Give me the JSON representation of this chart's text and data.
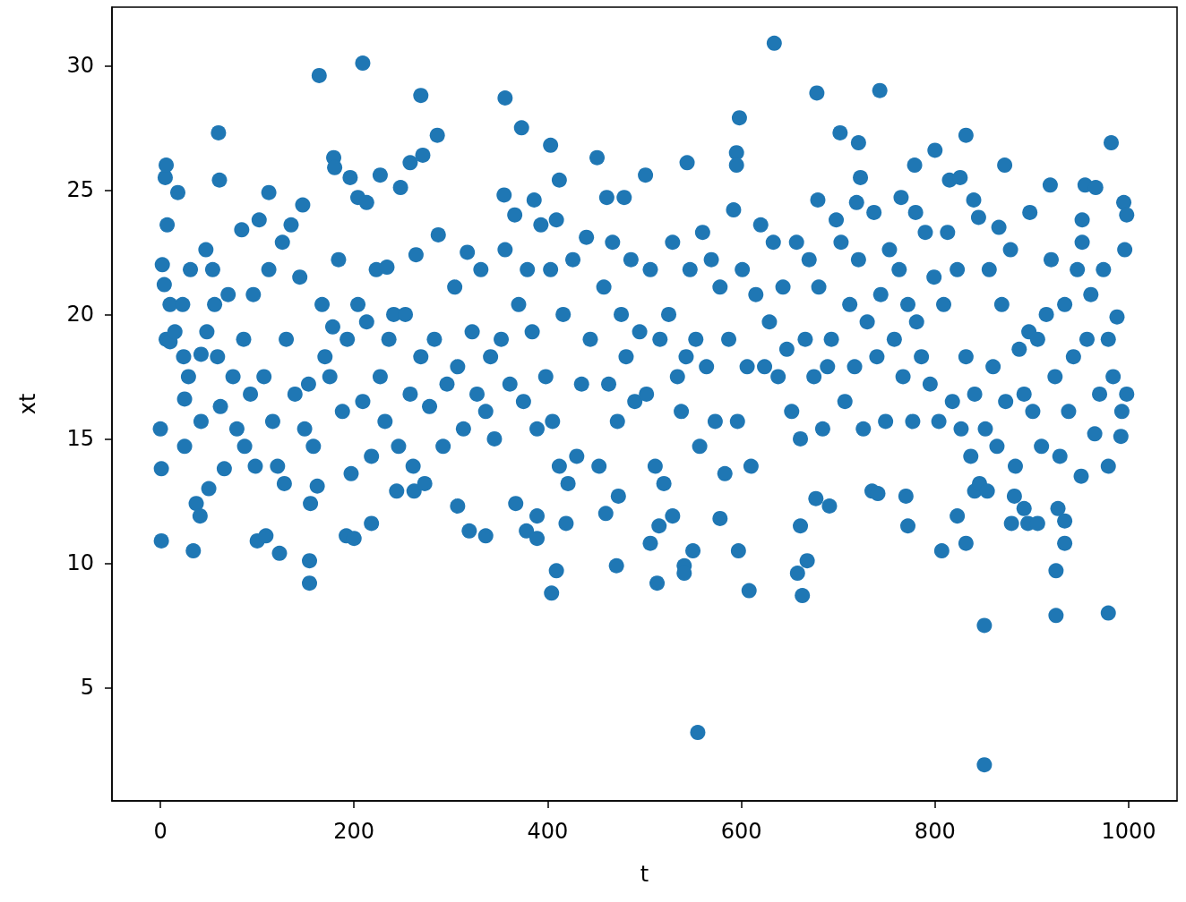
{
  "chart_data": {
    "type": "scatter",
    "xlabel": "t",
    "ylabel": "xt",
    "color": "#1f77b4",
    "marker": "circle",
    "xlim": [
      -50,
      1050
    ],
    "ylim": [
      0.45,
      32.35
    ],
    "xticks": [
      0,
      200,
      400,
      600,
      800,
      1000
    ],
    "yticks": [
      5,
      10,
      15,
      20,
      25,
      30
    ],
    "x": [
      0,
      1,
      1,
      2,
      4,
      5,
      6,
      6,
      7,
      10,
      10,
      15,
      18,
      23,
      24,
      25,
      25,
      29,
      31,
      34,
      37,
      41,
      42,
      42,
      47,
      48,
      50,
      54,
      56,
      59,
      60,
      61,
      62,
      66,
      70,
      75,
      79,
      84,
      86,
      87,
      93,
      96,
      98,
      100,
      102,
      107,
      109,
      112,
      112,
      116,
      121,
      123,
      126,
      128,
      130,
      135,
      139,
      144,
      147,
      149,
      153,
      154,
      154,
      155,
      158,
      162,
      164,
      167,
      170,
      175,
      178,
      179,
      180,
      184,
      188,
      192,
      193,
      196,
      197,
      200,
      204,
      204,
      209,
      209,
      213,
      213,
      218,
      218,
      223,
      227,
      227,
      232,
      234,
      236,
      241,
      244,
      246,
      248,
      253,
      258,
      258,
      261,
      262,
      264,
      269,
      269,
      271,
      273,
      278,
      283,
      286,
      287,
      292,
      296,
      304,
      307,
      307,
      313,
      317,
      319,
      322,
      327,
      331,
      336,
      336,
      341,
      345,
      352,
      355,
      356,
      356,
      361,
      366,
      367,
      370,
      373,
      375,
      378,
      379,
      384,
      386,
      389,
      389,
      389,
      393,
      398,
      403,
      403,
      404,
      405,
      409,
      409,
      412,
      412,
      416,
      419,
      421,
      426,
      430,
      435,
      440,
      444,
      451,
      453,
      458,
      460,
      461,
      463,
      467,
      471,
      472,
      473,
      476,
      479,
      481,
      486,
      490,
      495,
      501,
      502,
      506,
      506,
      511,
      513,
      515,
      516,
      520,
      525,
      529,
      529,
      534,
      538,
      541,
      541,
      543,
      544,
      547,
      550,
      553,
      555,
      557,
      560,
      564,
      569,
      573,
      578,
      578,
      583,
      587,
      592,
      595,
      595,
      596,
      597,
      598,
      601,
      606,
      608,
      610,
      615,
      620,
      624,
      629,
      633,
      634,
      638,
      643,
      647,
      652,
      657,
      658,
      661,
      661,
      663,
      666,
      668,
      670,
      675,
      677,
      678,
      679,
      680,
      684,
      689,
      691,
      693,
      698,
      702,
      703,
      707,
      712,
      717,
      719,
      721,
      721,
      723,
      726,
      730,
      735,
      737,
      740,
      741,
      743,
      744,
      749,
      753,
      758,
      763,
      765,
      767,
      770,
      772,
      772,
      777,
      779,
      780,
      781,
      786,
      790,
      795,
      799,
      800,
      804,
      807,
      809,
      813,
      815,
      818,
      823,
      823,
      826,
      827,
      832,
      832,
      832,
      837,
      840,
      841,
      841,
      845,
      846,
      851,
      851,
      852,
      854,
      856,
      860,
      864,
      866,
      869,
      872,
      873,
      878,
      879,
      882,
      883,
      887,
      892,
      892,
      896,
      897,
      898,
      901,
      906,
      906,
      910,
      915,
      919,
      920,
      924,
      925,
      925,
      927,
      929,
      934,
      934,
      934,
      938,
      943,
      947,
      951,
      952,
      952,
      955,
      957,
      961,
      965,
      966,
      970,
      974,
      979,
      979,
      979,
      982,
      984,
      988,
      992,
      993,
      995,
      996,
      998,
      998
    ],
    "values": [
      15.4,
      13.8,
      10.9,
      22.0,
      21.2,
      25.5,
      26.0,
      19.0,
      23.6,
      20.4,
      18.9,
      19.3,
      24.9,
      20.4,
      18.3,
      16.6,
      14.7,
      17.5,
      21.8,
      10.5,
      12.4,
      11.9,
      15.7,
      18.4,
      22.6,
      19.3,
      13.0,
      21.8,
      20.4,
      18.3,
      27.3,
      25.4,
      16.3,
      13.8,
      20.8,
      17.5,
      15.4,
      23.4,
      19.0,
      14.7,
      16.8,
      20.8,
      13.9,
      10.9,
      23.8,
      17.5,
      11.1,
      24.9,
      21.8,
      15.7,
      13.9,
      10.4,
      22.9,
      13.2,
      19.0,
      23.6,
      16.8,
      21.5,
      24.4,
      15.4,
      17.2,
      10.1,
      9.2,
      12.4,
      14.7,
      13.1,
      29.6,
      20.4,
      18.3,
      17.5,
      19.5,
      26.3,
      25.9,
      22.2,
      16.1,
      11.1,
      19.0,
      25.5,
      13.6,
      11.0,
      24.7,
      20.4,
      30.1,
      16.5,
      24.5,
      19.7,
      11.6,
      14.3,
      21.8,
      25.6,
      17.5,
      15.7,
      21.9,
      19.0,
      20.0,
      12.9,
      14.7,
      25.1,
      20.0,
      26.1,
      16.8,
      13.9,
      12.9,
      22.4,
      28.8,
      18.3,
      26.4,
      13.2,
      16.3,
      19.0,
      27.2,
      23.2,
      14.7,
      17.2,
      21.1,
      12.3,
      17.9,
      15.4,
      22.5,
      11.3,
      19.3,
      16.8,
      21.8,
      11.1,
      16.1,
      18.3,
      15.0,
      19.0,
      24.8,
      28.7,
      22.6,
      17.2,
      24.0,
      12.4,
      20.4,
      27.5,
      16.5,
      11.3,
      21.8,
      19.3,
      24.6,
      11.0,
      11.9,
      15.4,
      23.6,
      17.5,
      26.8,
      21.8,
      8.8,
      15.7,
      9.7,
      23.8,
      25.4,
      13.9,
      20.0,
      11.6,
      13.2,
      22.2,
      14.3,
      17.2,
      23.1,
      19.0,
      26.3,
      13.9,
      21.1,
      12.0,
      24.7,
      17.2,
      22.9,
      9.9,
      15.7,
      12.7,
      20.0,
      24.7,
      18.3,
      22.2,
      16.5,
      19.3,
      25.6,
      16.8,
      10.8,
      21.8,
      13.9,
      9.2,
      11.5,
      19.0,
      13.2,
      20.0,
      11.9,
      22.9,
      17.5,
      16.1,
      9.9,
      9.6,
      18.3,
      26.1,
      21.8,
      10.5,
      19.0,
      3.2,
      14.7,
      23.3,
      17.9,
      22.2,
      15.7,
      11.8,
      21.1,
      13.6,
      19.0,
      24.2,
      26.5,
      26.0,
      15.7,
      10.5,
      27.9,
      21.8,
      17.9,
      8.9,
      13.9,
      20.8,
      23.6,
      17.9,
      19.7,
      22.9,
      30.9,
      17.5,
      21.1,
      18.6,
      16.1,
      22.9,
      9.6,
      15.0,
      11.5,
      8.7,
      19.0,
      10.1,
      22.2,
      17.5,
      12.6,
      28.9,
      24.6,
      21.1,
      15.4,
      17.9,
      12.3,
      19.0,
      23.8,
      27.3,
      22.9,
      16.5,
      20.4,
      17.9,
      24.5,
      26.9,
      22.2,
      25.5,
      15.4,
      19.7,
      12.9,
      24.1,
      18.3,
      12.8,
      29.0,
      20.8,
      15.7,
      22.6,
      19.0,
      21.8,
      24.7,
      17.5,
      12.7,
      11.5,
      20.4,
      15.7,
      26.0,
      24.1,
      19.7,
      18.3,
      23.3,
      17.2,
      21.5,
      26.6,
      15.7,
      10.5,
      20.4,
      23.3,
      25.4,
      16.5,
      11.9,
      21.8,
      25.5,
      15.4,
      27.2,
      10.8,
      18.3,
      14.3,
      24.6,
      12.9,
      16.8,
      23.9,
      13.2,
      7.5,
      1.9,
      15.4,
      12.9,
      21.8,
      17.9,
      14.7,
      23.5,
      20.4,
      26.0,
      16.5,
      22.6,
      11.6,
      12.7,
      13.9,
      18.6,
      12.2,
      16.8,
      11.6,
      19.3,
      24.1,
      16.1,
      11.6,
      19.0,
      14.7,
      20.0,
      25.2,
      22.2,
      17.5,
      7.9,
      9.7,
      12.2,
      14.3,
      10.8,
      11.7,
      20.4,
      16.1,
      18.3,
      21.8,
      13.5,
      22.9,
      23.8,
      25.2,
      19.0,
      20.8,
      15.2,
      25.1,
      16.8,
      21.8,
      8.0,
      13.9,
      19.0,
      26.9,
      17.5,
      19.9,
      15.1,
      16.1,
      24.5,
      22.6,
      24.0,
      16.8
    ]
  }
}
